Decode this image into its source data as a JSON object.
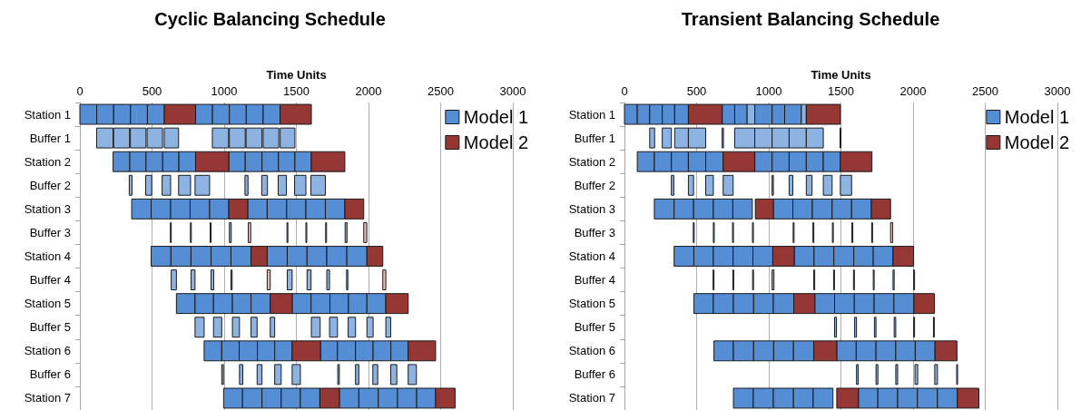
{
  "chart_data": [
    {
      "type": "bar",
      "orientation": "horizontal",
      "title": "Cyclic Balancing Schedule",
      "xlabel": "Time Units",
      "categories": [
        "Station 1",
        "Buffer 1",
        "Station 2",
        "Buffer 2",
        "Station 3",
        "Buffer 3",
        "Station 4",
        "Buffer 4",
        "Station 5",
        "Buffer 5",
        "Station 6",
        "Buffer 6",
        "Station 7"
      ],
      "xlim": [
        0,
        3000
      ],
      "xticks": [
        0,
        500,
        1000,
        1500,
        2000,
        2500,
        3000
      ],
      "grid": "x",
      "legend": "top right",
      "series": [
        {
          "name": "Model 1",
          "color": "#558ed5",
          "base": [
            0,
            116,
            230,
            342,
            359,
            627,
            494,
            633,
            669,
            798,
            861,
            983,
            996
          ],
          "values": [
            117,
            114,
            116,
            19,
            135,
            4,
            137,
            36,
            129,
            63,
            122,
            12,
            131
          ],
          "colors": [
            "#558ed5",
            "#8db3e2",
            "#558ed5",
            "#8db3e2",
            "#558ed5",
            "#8db3e2",
            "#558ed5",
            "#8db3e2",
            "#558ed5",
            "#8db3e2",
            "#558ed5",
            "#8db3e2",
            "#558ed5"
          ]
        },
        {
          "color": "#558ed5",
          "base": [
            117,
            234,
            346,
            456,
            494,
            766,
            631,
            770,
            798,
            926,
            983,
            1106,
            1127
          ],
          "values": [
            117,
            110,
            112,
            42,
            135,
            4,
            139,
            28,
            128,
            57,
            121,
            23,
            135
          ],
          "colors": [
            "#558ed5",
            "#8db3e2",
            "#558ed5",
            "#8db3e2",
            "#558ed5",
            "#8db3e2",
            "#558ed5",
            "#8db3e2",
            "#558ed5",
            "#8db3e2",
            "#558ed5",
            "#8db3e2",
            "#558ed5"
          ]
        },
        {
          "color": "#558ed5",
          "base": [
            234,
            350,
            458,
            570,
            629,
            903,
            770,
            909,
            926,
            1057,
            1104,
            1228,
            1262
          ],
          "values": [
            117,
            108,
            116,
            59,
            135,
            4,
            139,
            19,
            131,
            49,
            126,
            34,
            133
          ],
          "colors": [
            "#558ed5",
            "#8db3e2",
            "#558ed5",
            "#8db3e2",
            "#558ed5",
            "#8db3e2",
            "#558ed5",
            "#8db3e2",
            "#558ed5",
            "#8db3e2",
            "#558ed5",
            "#8db3e2",
            "#558ed5"
          ]
        },
        {
          "color": "#558ed5",
          "base": [
            351,
            466,
            574,
            684,
            764,
            1036,
            909,
            1047,
            1057,
            1186,
            1230,
            1350,
            1395
          ],
          "values": [
            117,
            107,
            112,
            83,
            135,
            13,
            138,
            8,
            129,
            42,
            120,
            45,
            133
          ],
          "colors": [
            "#558ed5",
            "#8db3e2",
            "#558ed5",
            "#8db3e2",
            "#558ed5",
            "#8db3e2",
            "#558ed5",
            "#8db3e2",
            "#558ed5",
            "#8db3e2",
            "#558ed5",
            "#8db3e2",
            "#558ed5"
          ]
        },
        {
          "color": "#558ed5",
          "base": [
            468,
            585,
            686,
            798,
            899,
            1435,
            1047,
            1437,
            1186,
            1319,
            1350,
            1471,
            1528
          ],
          "values": [
            117,
            99,
            116,
            101,
            133,
            4,
            139,
            34,
            133,
            31,
            121,
            57,
            135
          ],
          "colors": [
            "#558ed5",
            "#8db3e2",
            "#558ed5",
            "#8db3e2",
            "#558ed5",
            "#8db3e2",
            "#558ed5",
            "#8db3e2",
            "#558ed5",
            "#8db3e2",
            "#558ed5",
            "#8db3e2",
            "#558ed5"
          ]
        },
        {
          "color": "#558ed5",
          "base": [
            802,
            918,
            1032,
            1144,
            1163,
            1566,
            1298,
            1574,
            1471,
            1604,
            1667,
            1787,
            1798
          ],
          "values": [
            117,
            112,
            114,
            21,
            135,
            4,
            139,
            28,
            131,
            61,
            118,
            11,
            135
          ],
          "colors": [
            "#558ed5",
            "#8db3e2",
            "#558ed5",
            "#8db3e2",
            "#558ed5",
            "#8db3e2",
            "#558ed5",
            "#8db3e2",
            "#558ed5",
            "#8db3e2",
            "#558ed5",
            "#8db3e2",
            "#558ed5"
          ]
        },
        {
          "color": "#558ed5",
          "base": [
            919,
            1036,
            1146,
            1260,
            1298,
            1703,
            1437,
            1711,
            1602,
            1730,
            1785,
            1910,
            1933
          ],
          "values": [
            117,
            110,
            116,
            40,
            135,
            4,
            137,
            19,
            131,
            55,
            125,
            23,
            135
          ],
          "colors": [
            "#558ed5",
            "#8db3e2",
            "#558ed5",
            "#8db3e2",
            "#558ed5",
            "#8db3e2",
            "#558ed5",
            "#8db3e2",
            "#558ed5",
            "#8db3e2",
            "#558ed5",
            "#8db3e2",
            "#558ed5"
          ]
        },
        {
          "color": "#558ed5",
          "base": [
            1036,
            1152,
            1262,
            1374,
            1433,
            1838,
            1574,
            1848,
            1733,
            1859,
            1910,
            2030,
            2068
          ],
          "values": [
            117,
            110,
            114,
            57,
            133,
            13,
            137,
            9,
            128,
            51,
            122,
            34,
            133
          ],
          "colors": [
            "#558ed5",
            "#8db3e2",
            "#558ed5",
            "#8db3e2",
            "#558ed5",
            "#8db3e2",
            "#558ed5",
            "#8db3e2",
            "#558ed5",
            "#8db3e2",
            "#558ed5",
            "#8db3e2",
            "#558ed5"
          ]
        },
        {
          "color": "#558ed5",
          "base": [
            1153,
            1270,
            1376,
            1488,
            1566,
            null,
            1711,
            null,
            1861,
            1989,
            2032,
            2154,
            2201
          ],
          "values": [
            117,
            108,
            114,
            78,
            135,
            null,
            139,
            null,
            128,
            43,
            123,
            42,
            133
          ],
          "colors": [
            "#558ed5",
            "#8db3e2",
            "#558ed5",
            "#8db3e2",
            "#558ed5",
            null,
            "#558ed5",
            null,
            "#558ed5",
            "#8db3e2",
            "#558ed5",
            "#8db3e2",
            "#558ed5"
          ]
        },
        {
          "color": "#558ed5",
          "base": [
            1270,
            1388,
            1490,
            1601,
            1701,
            null,
            1850,
            null,
            1989,
            2120,
            2155,
            2275,
            2334
          ],
          "values": [
            117,
            102,
            114,
            100,
            135,
            null,
            139,
            null,
            131,
            34,
            120,
            57,
            131
          ],
          "colors": [
            "#558ed5",
            "#8db3e2",
            "#558ed5",
            "#8db3e2",
            "#558ed5",
            null,
            "#558ed5",
            null,
            "#558ed5",
            "#8db3e2",
            "#558ed5",
            "#8db3e2",
            "#558ed5"
          ]
        },
        {
          "name": "Model 2",
          "color": "#953735",
          "base": [
            585,
            null,
            802,
            null,
            1032,
            1167,
            1186,
            1298,
            1319,
            null,
            1471,
            null,
            1663
          ],
          "values": [
            217,
            null,
            230,
            null,
            131,
            17,
            112,
            21,
            152,
            null,
            196,
            null,
            135
          ],
          "colors": [
            "#953735",
            null,
            "#953735",
            null,
            "#953735",
            "#e6b9b8",
            "#953735",
            "#e6b9b8",
            "#953735",
            null,
            "#953735",
            null,
            "#953735"
          ]
        },
        {
          "color": "#953735",
          "base": [
            1387,
            null,
            1604,
            null,
            1836,
            1967,
            1989,
            2099,
            2120,
            null,
            2275,
            null,
            2465
          ],
          "values": [
            217,
            null,
            232,
            null,
            131,
            21,
            110,
            21,
            155,
            null,
            190,
            null,
            135
          ],
          "colors": [
            "#953735",
            null,
            "#953735",
            null,
            "#953735",
            "#e6b9b8",
            "#953735",
            "#e6b9b8",
            "#953735",
            null,
            "#953735",
            null,
            "#953735"
          ]
        }
      ]
    },
    {
      "type": "bar",
      "orientation": "horizontal",
      "title": "Transient Balancing Schedule",
      "xlabel": "Time Units",
      "categories": [
        "Station 1",
        "Buffer 1",
        "Station 2",
        "Buffer 2",
        "Station 3",
        "Buffer 3",
        "Station 4",
        "Buffer 4",
        "Station 5",
        "Buffer 5",
        "Station 6",
        "Buffer 6",
        "Station 7"
      ],
      "xlim": [
        0,
        3000
      ],
      "xticks": [
        0,
        500,
        1000,
        1500,
        2000,
        2500,
        3000
      ],
      "grid": "x",
      "legend": "top right",
      "series": [
        {
          "name": "Model 1",
          "color": "#558ed5",
          "base": [
            0,
            175,
            89,
            325,
            207,
            477,
            344,
            614,
            481,
            1456,
            620,
            1608,
            755
          ],
          "values": [
            89,
            34,
            118,
            17,
            137,
            4,
            137,
            4,
            135,
            13,
            135,
            12,
            138
          ],
          "colors": [
            "#558ed5",
            "#8db3e2",
            "#558ed5",
            "#8db3e2",
            "#558ed5",
            "#8db3e2",
            "#558ed5",
            "#8db3e2",
            "#558ed5",
            "#8db3e2",
            "#558ed5",
            "#8db3e2",
            "#558ed5"
          ]
        },
        {
          "color": "#558ed5",
          "base": [
            89,
            262,
            207,
            443,
            344,
            616,
            481,
            751,
            616,
            1595,
            755,
            1743,
            893
          ],
          "values": [
            86,
            63,
            118,
            36,
            135,
            4,
            135,
            4,
            139,
            13,
            140,
            13,
            139
          ],
          "colors": [
            "#558ed5",
            "#8db3e2",
            "#558ed5",
            "#8db3e2",
            "#558ed5",
            "#8db3e2",
            "#558ed5",
            "#8db3e2",
            "#558ed5",
            "#8db3e2",
            "#558ed5",
            "#8db3e2",
            "#558ed5"
          ]
        },
        {
          "color": "#558ed5",
          "base": [
            175,
            348,
            325,
            563,
            479,
            749,
            616,
            888,
            755,
            1732,
            895,
            1880,
            1032
          ],
          "values": [
            87,
            95,
            118,
            53,
            137,
            4,
            137,
            4,
            140,
            11,
            139,
            13,
            139
          ],
          "colors": [
            "#558ed5",
            "#8db3e2",
            "#558ed5",
            "#8db3e2",
            "#558ed5",
            "#8db3e2",
            "#558ed5",
            "#8db3e2",
            "#558ed5",
            "#8db3e2",
            "#558ed5",
            "#8db3e2",
            "#558ed5"
          ]
        },
        {
          "color": "#558ed5",
          "base": [
            262,
            443,
            443,
            684,
            616,
            887,
            753,
            1023,
            895,
            1869,
            1034,
            2013,
            1171
          ],
          "values": [
            86,
            120,
            120,
            69,
            135,
            4,
            137,
            13,
            137,
            11,
            137,
            19,
            137
          ],
          "colors": [
            "#558ed5",
            "#8db3e2",
            "#558ed5",
            "#8db3e2",
            "#558ed5",
            "#8db3e2",
            "#558ed5",
            "#8db3e2",
            "#558ed5",
            "#8db3e2",
            "#558ed5",
            "#8db3e2",
            "#558ed5"
          ]
        },
        {
          "color": "#558ed5",
          "base": [
            348,
            677,
            563,
            1023,
            751,
            1169,
            890,
            1312,
            1032,
            2004,
            1171,
            2150,
            1308
          ],
          "values": [
            95,
            9,
            121,
            9,
            135,
            5,
            138,
            4,
            141,
            6,
            141,
            19,
            137
          ],
          "colors": [
            "#558ed5",
            "#8db3e2",
            "#558ed5",
            "#8db3e2",
            "#558ed5",
            "#8db3e2",
            "#558ed5",
            "#8db3e2",
            "#558ed5",
            "#8db3e2",
            "#558ed5",
            "#8db3e2",
            "#558ed5"
          ]
        },
        {
          "color": "#558ed5",
          "base": [
            677,
            764,
            903,
            1141,
            1032,
            1306,
            1177,
            1449,
            1319,
            2141,
            1471,
            2302,
            1621
          ],
          "values": [
            87,
            139,
            120,
            26,
            135,
            5,
            137,
            4,
            137,
            6,
            135,
            6,
            135
          ],
          "colors": [
            "#558ed5",
            "#8db3e2",
            "#558ed5",
            "#8db3e2",
            "#558ed5",
            "#8db3e2",
            "#558ed5",
            "#8db3e2",
            "#558ed5",
            "#8db3e2",
            "#558ed5",
            "#8db3e2",
            "#558ed5"
          ]
        },
        {
          "color": "#558ed5",
          "base": [
            764,
            903,
            1023,
            1260,
            1167,
            1441,
            1314,
            1587,
            1456,
            null,
            1606,
            null,
            1756
          ],
          "values": [
            86,
            120,
            118,
            40,
            135,
            5,
            137,
            4,
            137,
            null,
            137,
            null,
            137
          ],
          "colors": [
            "#558ed5",
            "#8db3e2",
            "#558ed5",
            "#8db3e2",
            "#558ed5",
            "#8db3e2",
            "#558ed5",
            "#8db3e2",
            "#558ed5",
            null,
            "#558ed5",
            null,
            "#558ed5"
          ]
        },
        {
          "color": "#558ed5",
          "base": [
            850,
            1023,
            1141,
            1378,
            1302,
            1576,
            1451,
            1724,
            1593,
            null,
            1743,
            null,
            1893
          ],
          "values": [
            53,
            118,
            119,
            61,
            137,
            5,
            138,
            4,
            137,
            null,
            137,
            null,
            137
          ],
          "colors": [
            "#8db3e2",
            "#8db3e2",
            "#558ed5",
            "#8db3e2",
            "#558ed5",
            "#8db3e2",
            "#558ed5",
            "#8db3e2",
            "#558ed5",
            null,
            "#558ed5",
            null,
            "#558ed5"
          ]
        },
        {
          "color": "#558ed5",
          "base": [
            903,
            1141,
            1260,
            1496,
            1439,
            1713,
            1589,
            1861,
            1730,
            null,
            1880,
            null,
            2030
          ],
          "values": [
            120,
            119,
            118,
            78,
            135,
            5,
            135,
            8,
            137,
            null,
            135,
            null,
            139
          ],
          "colors": [
            "#558ed5",
            "#8db3e2",
            "#558ed5",
            "#8db3e2",
            "#558ed5",
            "#8db3e2",
            "#558ed5",
            "#8db3e2",
            "#558ed5",
            null,
            "#558ed5",
            null,
            "#558ed5"
          ]
        },
        {
          "color": "#558ed5",
          "base": [
            1023,
            1260,
            1378,
            null,
            1574,
            null,
            1724,
            2004,
            1867,
            null,
            2015,
            null,
            2169
          ],
          "values": [
            87,
            118,
            118,
            null,
            137,
            null,
            137,
            4,
            139,
            null,
            137,
            null,
            137
          ],
          "colors": [
            "#558ed5",
            "#8db3e2",
            "#558ed5",
            null,
            "#558ed5",
            null,
            "#558ed5",
            "#8db3e2",
            "#558ed5",
            null,
            "#558ed5",
            null,
            "#558ed5"
          ]
        },
        {
          "color": "#558ed5",
          "base": [
            1110,
            1494,
            null,
            null,
            null,
            null,
            null,
            null,
            null,
            null,
            null,
            null,
            null
          ],
          "values": [
            116,
            6,
            null,
            null,
            null,
            null,
            null,
            null,
            null,
            null,
            null,
            null,
            null
          ],
          "colors": [
            "#558ed5",
            "#8db3e2",
            null,
            null,
            null,
            null,
            null,
            null,
            null,
            null,
            null,
            null,
            null
          ]
        },
        {
          "color": "#8db3e2",
          "base": [
            1226,
            null,
            null,
            null,
            null,
            null,
            null,
            null,
            null,
            null,
            null,
            null,
            null
          ],
          "values": [
            34,
            null,
            null,
            null,
            null,
            null,
            null,
            null,
            null,
            null,
            null,
            null,
            null
          ]
        },
        {
          "name": "Model 2",
          "color": "#953735",
          "base": [
            443,
            null,
            684,
            null,
            907,
            1844,
            1028,
            null,
            1173,
            null,
            1312,
            null,
            1471
          ],
          "values": [
            234,
            null,
            219,
            null,
            125,
            15,
            149,
            null,
            146,
            null,
            159,
            null,
            150
          ],
          "colors": [
            "#953735",
            null,
            "#953735",
            null,
            "#953735",
            "#e6b9b8",
            "#953735",
            null,
            "#953735",
            null,
            "#953735",
            null,
            "#953735"
          ]
        },
        {
          "color": "#953735",
          "base": [
            1260,
            null,
            1496,
            null,
            1711,
            null,
            1861,
            null,
            2006,
            null,
            2152,
            null,
            2306
          ],
          "values": [
            236,
            null,
            219,
            null,
            133,
            null,
            143,
            null,
            142,
            null,
            152,
            null,
            150
          ]
        }
      ]
    }
  ]
}
